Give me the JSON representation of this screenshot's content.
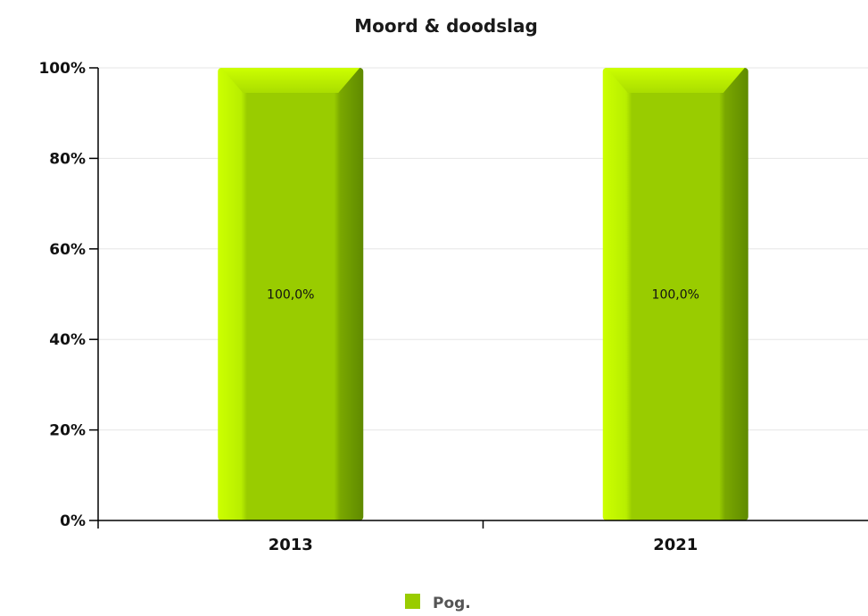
{
  "chart_data": {
    "type": "bar",
    "title": "Moord & doodslag",
    "categories": [
      "2013",
      "2021"
    ],
    "series": [
      {
        "name": "Pog.",
        "values": [
          100,
          100
        ],
        "color": "#99cc00"
      }
    ],
    "data_labels": [
      "100,0%",
      "100,0%"
    ],
    "yticks": [
      "0%",
      "20%",
      "40%",
      "60%",
      "80%",
      "100%"
    ],
    "ylim": [
      0,
      100
    ],
    "grid": true,
    "legend": "bottom-center"
  }
}
